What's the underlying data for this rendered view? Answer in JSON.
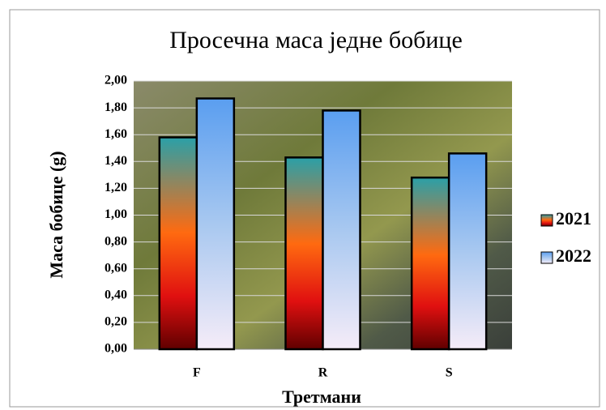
{
  "chart_data": {
    "type": "bar",
    "title": "Просечна маса једне бобице",
    "x_label": "Третмани",
    "y_label": "Маса бобице (g)",
    "categories": [
      "F",
      "R",
      "S"
    ],
    "series": [
      {
        "name": "2021",
        "color": "#ff6a10",
        "values": [
          1.58,
          1.43,
          1.28
        ]
      },
      {
        "name": "2022",
        "color": "#5a9ef0",
        "values": [
          1.87,
          1.78,
          1.46
        ]
      }
    ],
    "ylim": [
      0,
      2
    ],
    "yticks": [
      {
        "value": 0,
        "label": "0,00"
      },
      {
        "value": 0.2,
        "label": "0,20"
      },
      {
        "value": 0.4,
        "label": "0,40"
      },
      {
        "value": 0.6,
        "label": "0,60"
      },
      {
        "value": 0.8,
        "label": "0,80"
      },
      {
        "value": 1,
        "label": "1,00"
      },
      {
        "value": 1.2,
        "label": "1,20"
      },
      {
        "value": 1.4,
        "label": "1,40"
      },
      {
        "value": 1.6,
        "label": "1,60"
      },
      {
        "value": 1.8,
        "label": "1,80"
      },
      {
        "value": 2,
        "label": "2,00"
      }
    ],
    "grid": true,
    "legend": "right"
  }
}
